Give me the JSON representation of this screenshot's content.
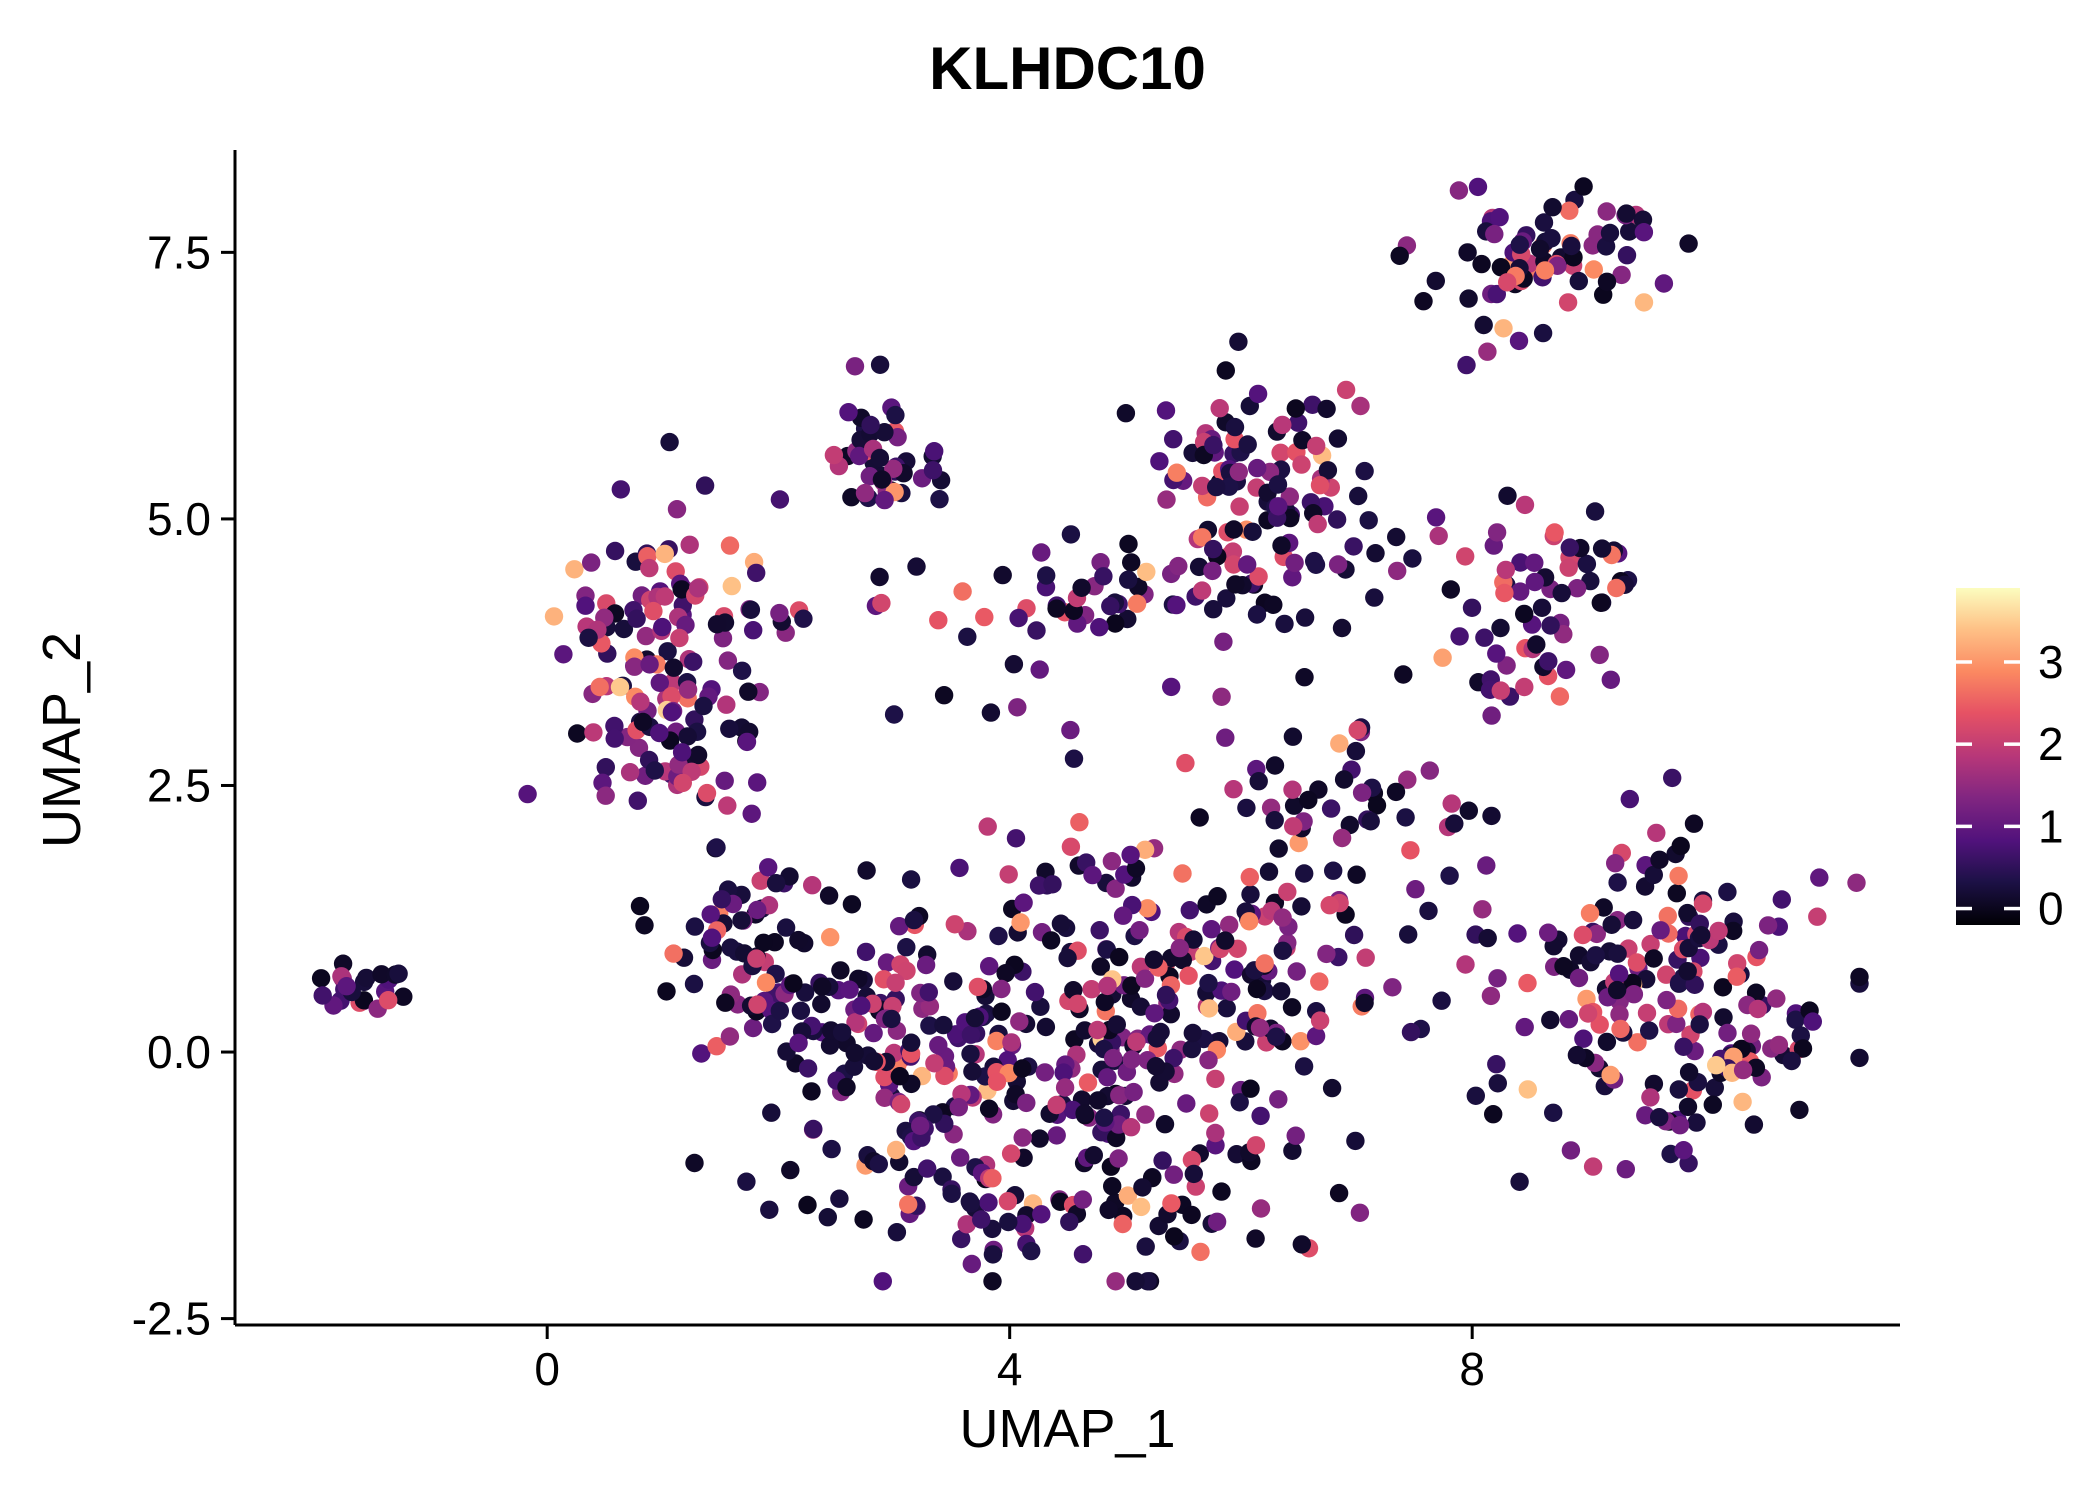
{
  "chart_data": {
    "type": "scatter",
    "title": "KLHDC10",
    "xlabel": "UMAP_1",
    "ylabel": "UMAP_2",
    "xlim": [
      -2.7,
      11.7
    ],
    "ylim": [
      -2.56,
      8.46
    ],
    "x_ticks": [
      0,
      4,
      8
    ],
    "x_tick_labels": [
      "0",
      "4",
      "8"
    ],
    "y_ticks": [
      -2.5,
      0.0,
      2.5,
      5.0,
      7.5
    ],
    "y_tick_labels": [
      "-2.5",
      "0.0",
      "2.5",
      "5.0",
      "7.5"
    ],
    "grid": false,
    "legend": {
      "position": "right",
      "ticks": [
        0,
        1,
        2,
        3
      ],
      "tick_labels": [
        "0",
        "1",
        "2",
        "3"
      ],
      "vmin": -0.2,
      "vmax": 3.9,
      "colormap": "magma"
    },
    "colormap_stops": [
      {
        "t": 0.0,
        "color": "#000004"
      },
      {
        "t": 0.13,
        "color": "#1d1147"
      },
      {
        "t": 0.25,
        "color": "#51127c"
      },
      {
        "t": 0.38,
        "color": "#822681"
      },
      {
        "t": 0.5,
        "color": "#b73779"
      },
      {
        "t": 0.63,
        "color": "#e65264"
      },
      {
        "t": 0.75,
        "color": "#fb8861"
      },
      {
        "t": 0.88,
        "color": "#fec287"
      },
      {
        "t": 1.0,
        "color": "#fcfdbf"
      }
    ],
    "point_radius": 9.2,
    "seed": 1337,
    "expression_bins": [
      [
        0.0,
        0.35
      ],
      [
        0.5,
        1.55
      ],
      [
        1.7,
        2.4
      ],
      [
        2.4,
        3.0
      ],
      [
        3.0,
        3.55
      ]
    ],
    "expression_weights": [
      0.44,
      0.34,
      0.15,
      0.05,
      0.02
    ],
    "clusters": [
      {
        "name": "isolated-left",
        "cx": -1.55,
        "cy": 0.62,
        "sx": 0.22,
        "sy": 0.13,
        "n": 24,
        "heat": 1.2
      },
      {
        "name": "left-upper",
        "cx": 0.95,
        "cy": 3.8,
        "sx": 0.48,
        "sy": 0.6,
        "n": 115,
        "heat": 1.5
      },
      {
        "name": "left-upper-tail",
        "cx": 1.35,
        "cy": 2.85,
        "sx": 0.28,
        "sy": 0.3,
        "n": 28,
        "heat": 1.3
      },
      {
        "name": "top-small",
        "cx": 2.85,
        "cy": 5.65,
        "sx": 0.28,
        "sy": 0.33,
        "n": 45,
        "heat": 1.0
      },
      {
        "name": "mid-band",
        "cx": 2.9,
        "cy": 4.25,
        "sx": 0.75,
        "sy": 0.15,
        "n": 20,
        "heat": 1.3
      },
      {
        "name": "mid-band-right",
        "cx": 4.75,
        "cy": 4.3,
        "sx": 0.33,
        "sy": 0.17,
        "n": 26,
        "heat": 1.0
      },
      {
        "name": "center-top",
        "cx": 6.1,
        "cy": 5.4,
        "sx": 0.5,
        "sy": 0.45,
        "n": 95,
        "heat": 1.0
      },
      {
        "name": "center-top-bridge",
        "cx": 6.0,
        "cy": 4.45,
        "sx": 0.45,
        "sy": 0.3,
        "n": 30,
        "heat": 0.9
      },
      {
        "name": "top-right",
        "cx": 8.65,
        "cy": 7.5,
        "sx": 0.5,
        "sy": 0.26,
        "n": 72,
        "heat": 1.0
      },
      {
        "name": "top-right-below",
        "cx": 8.1,
        "cy": 6.8,
        "sx": 0.35,
        "sy": 0.3,
        "n": 6,
        "heat": 1.0
      },
      {
        "name": "right-mid",
        "cx": 8.6,
        "cy": 4.25,
        "sx": 0.4,
        "sy": 0.45,
        "n": 55,
        "heat": 1.2
      },
      {
        "name": "right-mid-tail",
        "cx": 8.2,
        "cy": 3.35,
        "sx": 0.22,
        "sy": 0.22,
        "n": 10,
        "heat": 1.0
      },
      {
        "name": "central-left",
        "cx": 3.9,
        "cy": -0.2,
        "sx": 1.05,
        "sy": 0.85,
        "n": 250,
        "heat": 1.0
      },
      {
        "name": "central-right",
        "cx": 5.7,
        "cy": 0.7,
        "sx": 0.95,
        "sy": 0.8,
        "n": 190,
        "heat": 1.0
      },
      {
        "name": "central-bottom",
        "cx": 4.9,
        "cy": -1.5,
        "sx": 0.85,
        "sy": 0.28,
        "n": 50,
        "heat": 0.8
      },
      {
        "name": "central-west",
        "cx": 1.7,
        "cy": 1.1,
        "sx": 0.42,
        "sy": 0.42,
        "n": 55,
        "heat": 0.9
      },
      {
        "name": "central-west2",
        "cx": 2.45,
        "cy": 0.2,
        "sx": 0.5,
        "sy": 0.55,
        "n": 60,
        "heat": 0.9
      },
      {
        "name": "central-ne",
        "cx": 6.85,
        "cy": 2.2,
        "sx": 0.5,
        "sy": 0.45,
        "n": 40,
        "heat": 1.0
      },
      {
        "name": "right-large",
        "cx": 9.6,
        "cy": 0.55,
        "sx": 0.75,
        "sy": 0.72,
        "n": 185,
        "heat": 1.1
      },
      {
        "name": "right-hot-edge",
        "cx": 10.6,
        "cy": -0.05,
        "sx": 0.28,
        "sy": 0.22,
        "n": 14,
        "heat": 2.2
      },
      {
        "name": "sparse-mid",
        "cx": 4.9,
        "cy": 3.2,
        "sx": 1.7,
        "sy": 0.7,
        "n": 24,
        "heat": 1.0
      },
      {
        "name": "sparse-right-gap",
        "cx": 7.6,
        "cy": 4.5,
        "sx": 0.55,
        "sy": 0.5,
        "n": 12,
        "heat": 1.0
      }
    ]
  }
}
